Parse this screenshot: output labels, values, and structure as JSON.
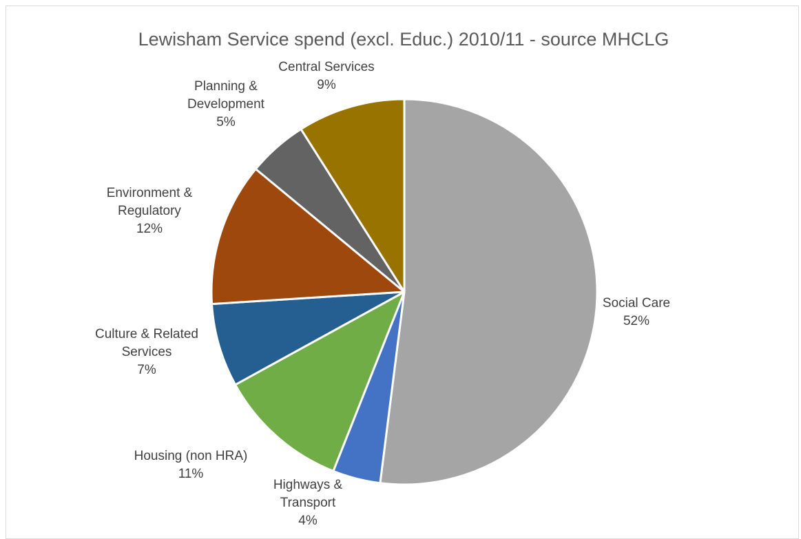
{
  "chart_data": {
    "type": "pie",
    "title": "Lewisham Service spend (excl. Educ.) 2010/11 - source MHCLG",
    "slices": [
      {
        "name": "Social Care",
        "value": 52,
        "label_lines": [
          "Social Care",
          "52%"
        ],
        "color": "#a5a5a5"
      },
      {
        "name": "Highways & Transport",
        "value": 4,
        "label_lines": [
          "Highways &",
          "Transport",
          "4%"
        ],
        "color": "#4472c4"
      },
      {
        "name": "Housing (non HRA)",
        "value": 11,
        "label_lines": [
          "Housing (non HRA)",
          "11%"
        ],
        "color": "#70ad47"
      },
      {
        "name": "Culture & Related Services",
        "value": 7,
        "label_lines": [
          "Culture & Related",
          "Services",
          "7%"
        ],
        "color": "#255e91"
      },
      {
        "name": "Environment & Regulatory",
        "value": 12,
        "label_lines": [
          "Environment &",
          "Regulatory",
          "12%"
        ],
        "color": "#9e480e"
      },
      {
        "name": "Planning & Development",
        "value": 5,
        "label_lines": [
          "Planning &",
          "Development",
          "5%"
        ],
        "color": "#636363"
      },
      {
        "name": "Central Services",
        "value": 9,
        "label_lines": [
          "Central Services",
          "9%"
        ],
        "color": "#997300"
      }
    ]
  }
}
